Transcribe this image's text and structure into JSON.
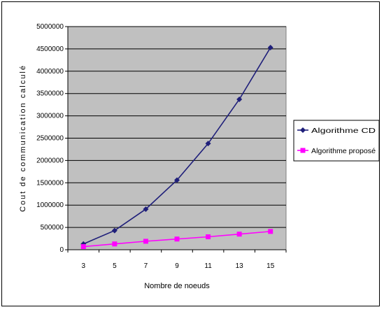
{
  "chart_data": {
    "type": "line",
    "title": "",
    "xlabel": "Nombre de noeuds",
    "ylabel": "Cout de communication calculé",
    "categories": [
      "3",
      "5",
      "7",
      "9",
      "11",
      "13",
      "15"
    ],
    "ylim": [
      0,
      5000000
    ],
    "y_ticks": [
      "0",
      "500000",
      "1000000",
      "1500000",
      "2000000",
      "2500000",
      "3000000",
      "3500000",
      "4000000",
      "4500000",
      "5000000"
    ],
    "grid": true,
    "plot_background": "#c0c0c0",
    "legend_position": "right",
    "series": [
      {
        "name": "Algorithme CD",
        "color": "#1f1f7a",
        "marker": "diamond",
        "values": [
          130000,
          430000,
          910000,
          1560000,
          2380000,
          3370000,
          4530000
        ]
      },
      {
        "name": "Algorithme proposé",
        "color": "#ff00ff",
        "marker": "square",
        "values": [
          70000,
          130000,
          190000,
          240000,
          290000,
          350000,
          410000
        ]
      }
    ]
  }
}
